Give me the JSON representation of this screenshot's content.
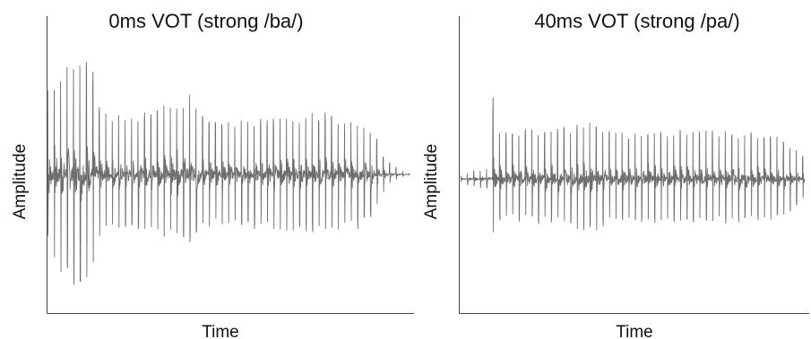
{
  "chart_data": [
    {
      "type": "line",
      "title": "0ms VOT (strong /ba/)",
      "xlabel": "Time",
      "ylabel": "Amplitude",
      "grid": false,
      "ticks": false,
      "color": "#6e6e6e",
      "envelope": {
        "x": [
          0,
          0.03,
          0.08,
          0.12,
          0.14,
          0.18,
          0.22,
          0.28,
          0.36,
          0.4,
          0.44,
          0.5,
          0.56,
          0.62,
          0.7,
          0.78,
          0.86,
          0.9,
          0.92,
          0.94,
          0.97,
          1.0
        ],
        "upper": [
          0.7,
          0.82,
          0.92,
          0.9,
          0.55,
          0.45,
          0.48,
          0.52,
          0.6,
          0.62,
          0.42,
          0.44,
          0.42,
          0.46,
          0.48,
          0.48,
          0.45,
          0.35,
          0.18,
          0.1,
          0.04,
          0.0
        ],
        "lower": [
          -0.55,
          -0.8,
          -0.86,
          -0.82,
          -0.5,
          -0.42,
          -0.44,
          -0.48,
          -0.52,
          -0.55,
          -0.4,
          -0.42,
          -0.42,
          -0.44,
          -0.45,
          -0.45,
          -0.42,
          -0.32,
          -0.16,
          -0.08,
          -0.03,
          0.0
        ]
      }
    },
    {
      "type": "line",
      "title": "40ms VOT (strong /pa/)",
      "xlabel": "Time",
      "ylabel": "Amplitude",
      "grid": false,
      "ticks": false,
      "color": "#6e6e6e",
      "envelope": {
        "x": [
          0,
          0.04,
          0.08,
          0.09,
          0.095,
          0.1,
          0.12,
          0.16,
          0.22,
          0.3,
          0.36,
          0.4,
          0.44,
          0.5,
          0.6,
          0.7,
          0.8,
          0.9,
          0.95,
          1.0
        ],
        "upper": [
          0.03,
          0.08,
          0.1,
          0.12,
          1.0,
          0.55,
          0.45,
          0.48,
          0.5,
          0.52,
          0.58,
          0.6,
          0.45,
          0.46,
          0.5,
          0.48,
          0.48,
          0.44,
          0.38,
          0.2
        ],
        "lower": [
          -0.03,
          -0.08,
          -0.1,
          -0.12,
          -0.62,
          -0.48,
          -0.4,
          -0.42,
          -0.44,
          -0.46,
          -0.5,
          -0.52,
          -0.4,
          -0.42,
          -0.44,
          -0.44,
          -0.44,
          -0.4,
          -0.35,
          -0.2
        ]
      }
    }
  ]
}
